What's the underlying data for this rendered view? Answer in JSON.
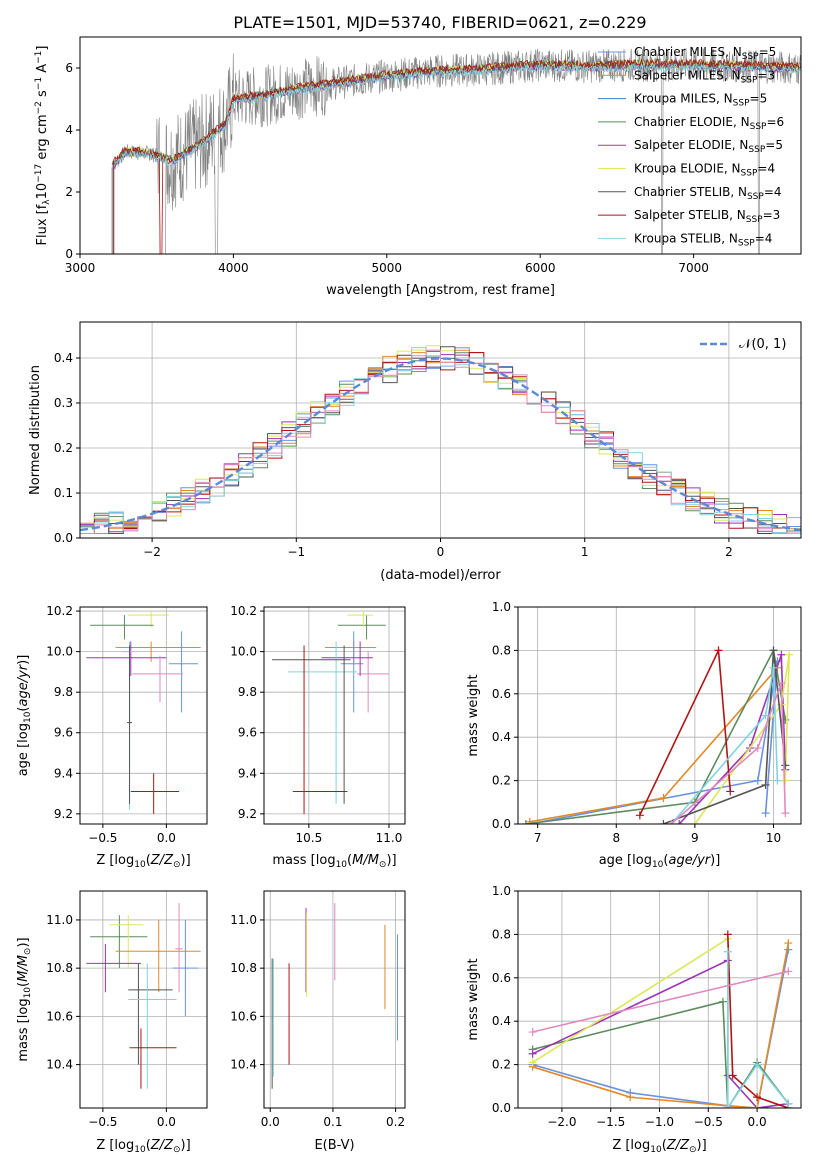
{
  "figure_title": "PLATE=1501, MJD=53740, FIBERID=0621, z=0.229",
  "colors": {
    "cm": "#6a92e0",
    "sm": "#e08a2a",
    "km": "#4a7dbf",
    "ce": "#5e8c5e",
    "se": "#9b35b5",
    "ke": "#dce85a",
    "cs": "#555555",
    "ss": "#b01515",
    "ks": "#7fd4e0",
    "pk": "#e08ac0",
    "data": "#808080"
  },
  "chart_data": [
    {
      "type": "line",
      "id": "spectrum",
      "xlabel": "wavelength [Angstrom, rest frame]",
      "ylabel": "Flux [f_λ10^-17 erg cm^-2 s^-1 A^-1]",
      "xlim": [
        3000,
        7700
      ],
      "ylim": [
        0,
        7
      ],
      "xticks": [
        3000,
        4000,
        5000,
        6000,
        7000
      ],
      "yticks": [
        0,
        2,
        4,
        6
      ],
      "legend_position": "right",
      "legend": [
        "Chabrier MILES, N_SSP=5",
        "Salpeter MILES, N_SSP=3",
        "Kroupa MILES, N_SSP=5",
        "Chabrier ELODIE, N_SSP=6",
        "Salpeter ELODIE, N_SSP=5",
        "Kroupa ELODIE, N_SSP=4",
        "Chabrier STELIB, N_SSP=4",
        "Salpeter STELIB, N_SSP=3",
        "Kroupa STELIB, N_SSP=4"
      ],
      "series_colors": [
        "cm",
        "sm",
        "km",
        "ce",
        "se",
        "ke",
        "cs",
        "ss",
        "ks"
      ],
      "model_curve": {
        "x": [
          3200,
          3300,
          3450,
          3600,
          3800,
          3950,
          4000,
          4200,
          4500,
          4800,
          5000,
          5300,
          5600,
          6000,
          6300,
          6600,
          7000,
          7400,
          7700
        ],
        "y": [
          2.8,
          3.3,
          3.25,
          3.0,
          3.6,
          4.2,
          5.0,
          5.1,
          5.4,
          5.6,
          5.75,
          5.9,
          5.95,
          6.1,
          6.05,
          6.1,
          6.1,
          6.05,
          6.0
        ]
      }
    },
    {
      "type": "bar",
      "id": "residuals",
      "xlabel": "(data-model)/error",
      "ylabel": "Normed distribution",
      "xlim": [
        -2.5,
        2.5
      ],
      "ylim": [
        0,
        0.48
      ],
      "xticks": [
        -2,
        -1,
        0,
        1,
        2
      ],
      "yticks": [
        0.0,
        0.1,
        0.2,
        0.3,
        0.4
      ],
      "legend": "𝒩(0, 1)",
      "legend_position": "top-right",
      "grid": true
    },
    {
      "type": "scatter",
      "id": "age-Z",
      "xlabel": "Z [log10(Z/Z⊙)]",
      "ylabel": "age [log10(age/yr)]",
      "xlim": [
        -0.68,
        0.32
      ],
      "ylim": [
        9.15,
        10.22
      ],
      "xticks": [
        -0.5,
        0.0
      ],
      "yticks": [
        9.2,
        9.4,
        9.6,
        9.8,
        10.0,
        10.2
      ],
      "grid": true,
      "points": [
        {
          "x": -0.12,
          "y": 10.18,
          "xe": [
            -0.3,
            0.02
          ],
          "ye": [
            10.12,
            10.2
          ],
          "c": "ke"
        },
        {
          "x": -0.33,
          "y": 10.13,
          "xe": [
            -0.6,
            -0.1
          ],
          "ye": [
            10.06,
            10.18
          ],
          "c": "ce"
        },
        {
          "x": -0.12,
          "y": 10.02,
          "xe": [
            -0.4,
            0.27
          ],
          "ye": [
            9.95,
            10.05
          ],
          "c": "sm"
        },
        {
          "x": 0.12,
          "y": 9.94,
          "xe": [
            0.02,
            0.25
          ],
          "ye": [
            9.7,
            10.1
          ],
          "c": "cm"
        },
        {
          "x": -0.28,
          "y": 9.97,
          "xe": [
            -0.63,
            0.0
          ],
          "ye": [
            9.88,
            10.05
          ],
          "c": "se"
        },
        {
          "x": -0.05,
          "y": 9.89,
          "xe": [
            -0.27,
            0.13
          ],
          "ye": [
            9.75,
            9.98
          ],
          "c": "pk"
        },
        {
          "x": -0.29,
          "y": 10.0,
          "xe": [
            -0.35,
            -0.26
          ],
          "ye": [
            9.22,
            10.05
          ],
          "c": "ks"
        },
        {
          "x": -0.29,
          "y": 9.65,
          "xe": [
            -0.31,
            -0.27
          ],
          "ye": [
            9.25,
            10.03
          ],
          "c": "cs"
        },
        {
          "x": -0.1,
          "y": 9.31,
          "xe": [
            -0.28,
            0.1
          ],
          "ye": [
            9.2,
            9.4
          ],
          "c": "ss"
        }
      ]
    },
    {
      "type": "scatter",
      "id": "age-mass",
      "xlabel": "mass [log10(M/M⊙)]",
      "ylabel": "",
      "xlim": [
        10.22,
        11.1
      ],
      "ylim": [
        9.15,
        10.22
      ],
      "xticks": [
        10.5,
        11.0
      ],
      "yticks": [
        9.2,
        9.4,
        9.6,
        9.8,
        10.0,
        10.2
      ],
      "grid": true,
      "points": [
        {
          "x": 10.86,
          "y": 10.13,
          "xe": [
            10.68,
            10.98
          ],
          "ye": [
            10.06,
            10.18
          ],
          "c": "ce"
        },
        {
          "x": 10.84,
          "y": 10.18,
          "xe": [
            10.74,
            10.9
          ],
          "ye": [
            10.12,
            10.2
          ],
          "c": "ke"
        },
        {
          "x": 10.78,
          "y": 10.02,
          "xe": [
            10.6,
            10.92
          ],
          "ye": [
            9.95,
            10.05
          ],
          "c": "sm"
        },
        {
          "x": 10.78,
          "y": 9.94,
          "xe": [
            10.7,
            10.84
          ],
          "ye": [
            9.7,
            10.1
          ],
          "c": "cm"
        },
        {
          "x": 10.87,
          "y": 9.89,
          "xe": [
            10.8,
            11.0
          ],
          "ye": [
            9.7,
            10.0
          ],
          "c": "pk"
        },
        {
          "x": 10.82,
          "y": 9.97,
          "xe": [
            10.58,
            10.9
          ],
          "ye": [
            9.88,
            10.05
          ],
          "c": "se"
        },
        {
          "x": 10.67,
          "y": 9.9,
          "xe": [
            10.37,
            10.8
          ],
          "ye": [
            9.25,
            10.05
          ],
          "c": "ks"
        },
        {
          "x": 10.72,
          "y": 9.96,
          "xe": [
            10.27,
            10.76
          ],
          "ye": [
            9.25,
            10.03
          ],
          "c": "cs"
        },
        {
          "x": 10.47,
          "y": 9.31,
          "xe": [
            10.4,
            10.74
          ],
          "ye": [
            9.2,
            10.03
          ],
          "c": "ss"
        }
      ]
    },
    {
      "type": "line",
      "id": "weight-age",
      "xlabel": "age [log10(age/yr)]",
      "ylabel": "mass weight",
      "xlim": [
        6.75,
        10.35
      ],
      "ylim": [
        0,
        1.0
      ],
      "xticks": [
        7,
        8,
        9,
        10
      ],
      "yticks": [
        0.0,
        0.2,
        0.4,
        0.6,
        0.8,
        1.0
      ],
      "grid": true,
      "series": [
        {
          "c": "cm",
          "x": [
            6.9,
            9.8,
            10.05,
            9.9
          ],
          "y": [
            0.0,
            0.2,
            0.75,
            0.05
          ]
        },
        {
          "c": "sm",
          "x": [
            6.9,
            8.6,
            10.05
          ],
          "y": [
            0.01,
            0.12,
            0.72
          ]
        },
        {
          "c": "ce",
          "x": [
            6.85,
            9.0,
            10.0,
            10.15
          ],
          "y": [
            0.0,
            0.1,
            0.8,
            0.48
          ]
        },
        {
          "c": "se",
          "x": [
            8.8,
            9.7,
            10.1,
            10.15
          ],
          "y": [
            0.0,
            0.35,
            0.78,
            0.25
          ]
        },
        {
          "c": "ke",
          "x": [
            9.0,
            10.1,
            10.2,
            10.15
          ],
          "y": [
            0.0,
            0.55,
            0.78,
            0.2
          ]
        },
        {
          "c": "cs",
          "x": [
            8.6,
            9.9,
            10.0,
            10.15
          ],
          "y": [
            0.0,
            0.18,
            0.8,
            0.27
          ]
        },
        {
          "c": "ss",
          "x": [
            8.3,
            9.3,
            9.45
          ],
          "y": [
            0.04,
            0.8,
            0.15
          ]
        },
        {
          "c": "ks",
          "x": [
            8.7,
            9.9,
            10.0,
            10.05
          ],
          "y": [
            0.0,
            0.5,
            0.72,
            0.2
          ]
        },
        {
          "c": "pk",
          "x": [
            8.7,
            9.8,
            10.1,
            10.15
          ],
          "y": [
            0.0,
            0.35,
            0.65,
            0.05
          ]
        }
      ]
    },
    {
      "type": "scatter",
      "id": "mass-Z",
      "xlabel": "Z [log10(Z/Z⊙)]",
      "ylabel": "mass [log10(M/M⊙)]",
      "xlim": [
        -0.68,
        0.32
      ],
      "ylim": [
        10.22,
        11.12
      ],
      "xticks": [
        -0.5,
        0.0
      ],
      "yticks": [
        10.4,
        10.6,
        10.8,
        11.0
      ],
      "grid": true,
      "points": [
        {
          "x": -0.37,
          "y": 10.93,
          "xe": [
            -0.6,
            -0.15
          ],
          "ye": [
            10.8,
            11.02
          ],
          "c": "ce"
        },
        {
          "x": -0.3,
          "y": 10.98,
          "xe": [
            -0.45,
            -0.18
          ],
          "ye": [
            10.8,
            11.02
          ],
          "c": "ke"
        },
        {
          "x": -0.06,
          "y": 10.87,
          "xe": [
            -0.4,
            0.27
          ],
          "ye": [
            10.7,
            11.0
          ],
          "c": "sm"
        },
        {
          "x": 0.15,
          "y": 10.8,
          "xe": [
            0.05,
            0.25
          ],
          "ye": [
            10.6,
            11.0
          ],
          "c": "cm"
        },
        {
          "x": -0.48,
          "y": 10.82,
          "xe": [
            -0.63,
            -0.2
          ],
          "ye": [
            10.7,
            10.9
          ],
          "c": "se"
        },
        {
          "x": -0.22,
          "y": 10.71,
          "xe": [
            -0.3,
            0.05
          ],
          "ye": [
            10.4,
            10.82
          ],
          "c": "cs"
        },
        {
          "x": -0.15,
          "y": 10.67,
          "xe": [
            -0.3,
            0.08
          ],
          "ye": [
            10.3,
            10.82
          ],
          "c": "ks"
        },
        {
          "x": 0.1,
          "y": 10.88,
          "xe": [
            0.07,
            0.13
          ],
          "ye": [
            10.7,
            11.07
          ],
          "c": "pk"
        },
        {
          "x": -0.2,
          "y": 10.47,
          "xe": [
            -0.29,
            0.08
          ],
          "ye": [
            10.3,
            10.55
          ],
          "c": "ss"
        }
      ]
    },
    {
      "type": "scatter",
      "id": "mass-ebv",
      "xlabel": "E(B-V)",
      "ylabel": "",
      "xlim": [
        -0.01,
        0.215
      ],
      "ylim": [
        10.22,
        11.12
      ],
      "xticks": [
        0.0,
        0.1,
        0.2
      ],
      "yticks": [
        10.4,
        10.6,
        10.8,
        11.0
      ],
      "grid": true,
      "points": [
        {
          "x": 0.003,
          "y": 10.5,
          "ye": [
            10.3,
            10.84
          ],
          "c": "cs"
        },
        {
          "x": 0.005,
          "y": 10.55,
          "ye": [
            10.35,
            10.84
          ],
          "c": "ks"
        },
        {
          "x": 0.03,
          "y": 10.6,
          "ye": [
            10.4,
            10.82
          ],
          "c": "ss"
        },
        {
          "x": 0.057,
          "y": 10.9,
          "ye": [
            10.7,
            11.05
          ],
          "c": "se"
        },
        {
          "x": 0.058,
          "y": 10.92,
          "ye": [
            10.68,
            11.03
          ],
          "c": "ke"
        },
        {
          "x": 0.103,
          "y": 10.92,
          "ye": [
            10.75,
            11.07
          ],
          "c": "pk"
        },
        {
          "x": 0.183,
          "y": 10.8,
          "ye": [
            10.63,
            10.98
          ],
          "c": "sm"
        },
        {
          "x": 0.203,
          "y": 10.75,
          "ye": [
            10.5,
            10.94
          ],
          "c": "cm"
        }
      ]
    },
    {
      "type": "line",
      "id": "weight-Z",
      "xlabel": "Z [log10(Z/Z⊙)]",
      "ylabel": "mass weight",
      "xlim": [
        -2.45,
        0.45
      ],
      "ylim": [
        0,
        1.0
      ],
      "xticks": [
        -2.0,
        -1.5,
        -1.0,
        -0.5,
        0.0
      ],
      "yticks": [
        0.0,
        0.2,
        0.4,
        0.6,
        0.8,
        1.0
      ],
      "grid": true,
      "series": [
        {
          "c": "cm",
          "x": [
            -2.3,
            -1.3,
            -0.3,
            0.0,
            0.32
          ],
          "y": [
            0.2,
            0.07,
            0.01,
            0.0,
            0.73
          ]
        },
        {
          "c": "sm",
          "x": [
            -2.3,
            -1.3,
            -0.3,
            0.0,
            0.32
          ],
          "y": [
            0.19,
            0.05,
            0.01,
            0.0,
            0.76
          ]
        },
        {
          "c": "ce",
          "x": [
            -2.3,
            -0.35,
            -0.3,
            0.0,
            0.32
          ],
          "y": [
            0.27,
            0.49,
            0.0,
            0.21,
            0.02
          ]
        },
        {
          "c": "se",
          "x": [
            -2.3,
            -0.3,
            -0.3,
            0.0,
            0.32
          ],
          "y": [
            0.25,
            0.68,
            0.15,
            0.0,
            0.02
          ]
        },
        {
          "c": "ke",
          "x": [
            -2.3,
            -0.3,
            -0.3,
            0.0
          ],
          "y": [
            0.21,
            0.78,
            0.0,
            0.0
          ]
        },
        {
          "c": "ss",
          "x": [
            -0.3,
            -0.25,
            0.0,
            0.32
          ],
          "y": [
            0.8,
            0.15,
            0.05,
            0.0
          ]
        },
        {
          "c": "ks",
          "x": [
            -0.3,
            -0.3,
            0.0,
            0.32
          ],
          "y": [
            0.72,
            0.0,
            0.2,
            0.02
          ]
        },
        {
          "c": "pk",
          "x": [
            -2.3,
            0.32
          ],
          "y": [
            0.35,
            0.63
          ]
        }
      ]
    }
  ]
}
